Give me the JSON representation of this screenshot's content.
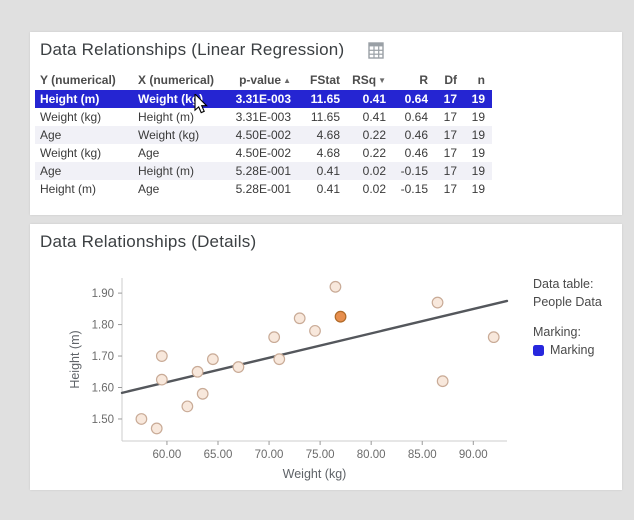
{
  "page": {
    "background": "#e0e0e0"
  },
  "regression_panel": {
    "title": "Data Relationships (Linear Regression)",
    "icon": "table-visualization-icon",
    "table": {
      "selection_color": "#2525d2",
      "stripe_color": "#f1f1f7",
      "columns": [
        {
          "label": "Y (numerical)",
          "align": "left",
          "sort": null
        },
        {
          "label": "X (numerical)",
          "align": "left",
          "sort": null
        },
        {
          "label": "p-value",
          "align": "right",
          "sort": "asc"
        },
        {
          "label": "FStat",
          "align": "right",
          "sort": null
        },
        {
          "label": "RSq",
          "align": "right",
          "sort": "desc"
        },
        {
          "label": "R",
          "align": "right",
          "sort": null
        },
        {
          "label": "Df",
          "align": "right",
          "sort": null
        },
        {
          "label": "n",
          "align": "right",
          "sort": null
        }
      ],
      "rows": [
        {
          "selected": true,
          "cells": [
            "Height (m)",
            "Weight (kg)",
            "3.31E-003",
            "11.65",
            "0.41",
            "0.64",
            "17",
            "19"
          ]
        },
        {
          "selected": false,
          "cells": [
            "Weight (kg)",
            "Height (m)",
            "3.31E-003",
            "11.65",
            "0.41",
            "0.64",
            "17",
            "19"
          ]
        },
        {
          "selected": false,
          "cells": [
            "Age",
            "Weight (kg)",
            "4.50E-002",
            "4.68",
            "0.22",
            "0.46",
            "17",
            "19"
          ]
        },
        {
          "selected": false,
          "cells": [
            "Weight (kg)",
            "Age",
            "4.50E-002",
            "4.68",
            "0.22",
            "0.46",
            "17",
            "19"
          ]
        },
        {
          "selected": false,
          "cells": [
            "Age",
            "Height (m)",
            "5.28E-001",
            "0.41",
            "0.02",
            "-0.15",
            "17",
            "19"
          ]
        },
        {
          "selected": false,
          "cells": [
            "Height (m)",
            "Age",
            "5.28E-001",
            "0.41",
            "0.02",
            "-0.15",
            "17",
            "19"
          ]
        }
      ]
    }
  },
  "details_panel": {
    "title": "Data Relationships (Details)"
  },
  "chart_data": {
    "type": "scatter",
    "title": "Data Relationships (Details)",
    "xlabel": "Weight (kg)",
    "ylabel": "Height (m)",
    "xlim": [
      55.6,
      93.3
    ],
    "ylim": [
      1.43,
      1.948
    ],
    "xticks": [
      60,
      65,
      70,
      75,
      80,
      85,
      90
    ],
    "yticks": [
      1.5,
      1.6,
      1.7,
      1.8,
      1.9
    ],
    "grid": false,
    "points": [
      [
        57.5,
        1.5
      ],
      [
        59.0,
        1.47
      ],
      [
        59.5,
        1.7
      ],
      [
        59.5,
        1.625
      ],
      [
        62.0,
        1.54
      ],
      [
        63.0,
        1.65
      ],
      [
        63.5,
        1.58
      ],
      [
        64.5,
        1.69
      ],
      [
        67.0,
        1.665
      ],
      [
        70.5,
        1.76
      ],
      [
        71.0,
        1.69
      ],
      [
        73.0,
        1.82
      ],
      [
        74.5,
        1.78
      ],
      [
        76.5,
        1.92
      ],
      [
        86.5,
        1.87
      ],
      [
        87.0,
        1.62
      ],
      [
        92.0,
        1.76
      ]
    ],
    "marked_point": [
      77.0,
      1.825
    ],
    "regression_line": {
      "x1": 55.6,
      "y1": 1.583,
      "x2": 93.3,
      "y2": 1.875
    },
    "point_fill": "#f8e8dc",
    "point_stroke": "#c9ab97",
    "marked_fill": "#e78f4e",
    "marked_stroke": "#b06a28",
    "line_color": "#54575c",
    "axis_color": "#cccccc",
    "tick_color": "#9a9a9a",
    "tick_label_color": "#6b6b6b",
    "axis_title_color": "#5f6368",
    "legend": {
      "data_table_label": "Data table:",
      "data_table_value": "People Data",
      "marking_label": "Marking:",
      "marking_value": "Marking",
      "marking_color": "#2727dd"
    }
  }
}
